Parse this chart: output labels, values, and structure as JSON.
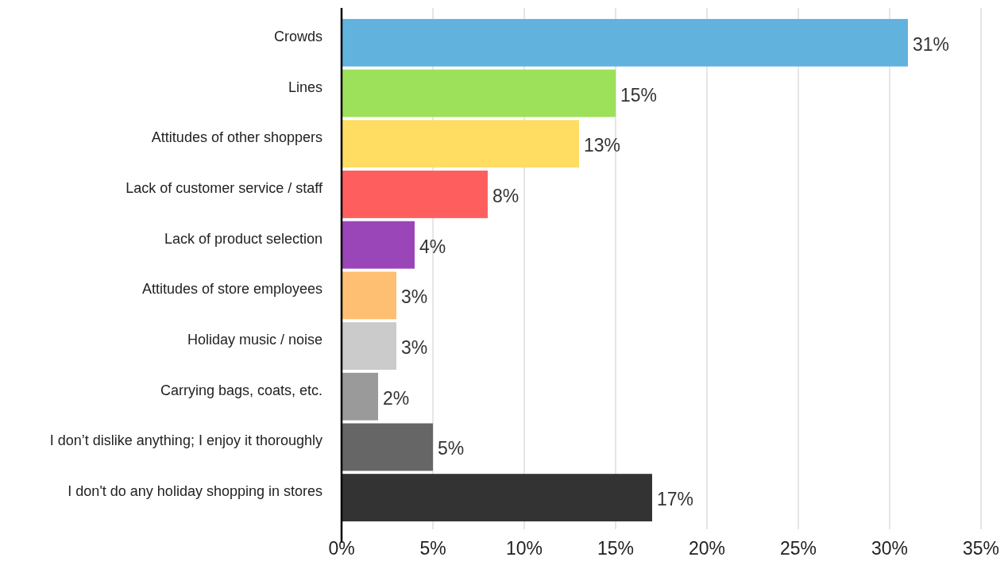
{
  "chart_data": {
    "type": "bar",
    "orientation": "horizontal",
    "categories": [
      "Crowds",
      "Lines",
      "Attitudes of other shoppers",
      "Lack of customer service / staff",
      "Lack of product selection",
      "Attitudes of store employees",
      "Holiday music / noise",
      "Carrying bags, coats, etc.",
      "I don’t dislike anything; I enjoy it thoroughly",
      "I don't do any holiday shopping in stores"
    ],
    "values": [
      31,
      15,
      13,
      8,
      4,
      3,
      3,
      2,
      5,
      17
    ],
    "value_labels": [
      "31%",
      "15%",
      "13%",
      "8%",
      "4%",
      "3%",
      "3%",
      "2%",
      "5%",
      "17%"
    ],
    "colors": [
      "#62b2de",
      "#9de05a",
      "#fedd62",
      "#fe5f5e",
      "#9a46b8",
      "#ffbf72",
      "#cbcbcb",
      "#9a9a9a",
      "#666666",
      "#333333"
    ],
    "xlim": [
      0,
      35
    ],
    "xticks": [
      {
        "value": 0,
        "label": "0%"
      },
      {
        "value": 5,
        "label": "5%"
      },
      {
        "value": 10,
        "label": "10%"
      },
      {
        "value": 15,
        "label": "15%"
      },
      {
        "value": 20,
        "label": "20%"
      },
      {
        "value": 25,
        "label": "25%"
      },
      {
        "value": 30,
        "label": "30%"
      },
      {
        "value": 35,
        "label": "35%"
      }
    ],
    "grid": "x"
  }
}
